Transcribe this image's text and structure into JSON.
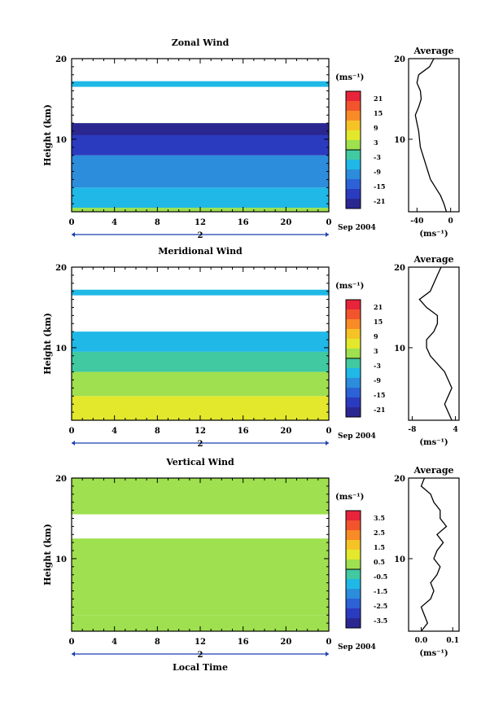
{
  "chart_data": [
    {
      "type": "heatmap",
      "title": "Zonal Wind",
      "ylabel": "Height (km)",
      "xlabel": "",
      "xlim": [
        0,
        24
      ],
      "ylim": [
        1,
        20
      ],
      "x_ticks": [
        "0",
        "4",
        "8",
        "12",
        "16",
        "20",
        "0"
      ],
      "y_ticks": [
        "10",
        "20"
      ],
      "date_label": "2",
      "date_suffix": "Sep 2004",
      "colorbar": {
        "unit": "(ms⁻¹)",
        "ticks": [
          "21",
          "15",
          "9",
          "3",
          "-3",
          "-9",
          "-15",
          "-21"
        ],
        "colors": [
          "#e8243a",
          "#f2552d",
          "#f98b27",
          "#f6c327",
          "#e3e82d",
          "#9ee04f",
          "#41c9a1",
          "#20b8e6",
          "#2b8ddc",
          "#2c62d6",
          "#2b3bc0",
          "#2a2890"
        ]
      },
      "field": {
        "bands": [
          {
            "y_from": 1.0,
            "y_to": 1.5,
            "value": 1
          },
          {
            "y_from": 1.5,
            "y_to": 4.0,
            "value": -5
          },
          {
            "y_from": 4.0,
            "y_to": 8.0,
            "value": -9
          },
          {
            "y_from": 8.0,
            "y_to": 10.5,
            "value": -14
          },
          {
            "y_from": 10.5,
            "y_to": 12.0,
            "value": -19
          },
          {
            "y_from": 16.5,
            "y_to": 17.2,
            "value": -6
          }
        ]
      },
      "profile": {
        "title": "Average",
        "xlabel": "(ms⁻¹)",
        "x_ticks": [
          "-40",
          "0"
        ],
        "xlim": [
          -50,
          10
        ],
        "y": [
          1,
          2,
          3,
          4,
          5,
          6,
          7,
          8,
          9,
          10,
          11,
          12,
          13,
          14,
          15,
          16,
          17,
          18,
          19,
          20
        ],
        "x": [
          -5,
          -8,
          -12,
          -18,
          -24,
          -27,
          -30,
          -33,
          -36,
          -37,
          -38,
          -40,
          -42,
          -38,
          -35,
          -36,
          -40,
          -38,
          -25,
          -20
        ]
      }
    },
    {
      "type": "heatmap",
      "title": "Meridional Wind",
      "ylabel": "Height (km)",
      "xlabel": "",
      "xlim": [
        0,
        24
      ],
      "ylim": [
        1,
        20
      ],
      "x_ticks": [
        "0",
        "4",
        "8",
        "12",
        "16",
        "20",
        "0"
      ],
      "y_ticks": [
        "10",
        "20"
      ],
      "date_label": "2",
      "date_suffix": "Sep 2004",
      "colorbar": {
        "unit": "(ms⁻¹)",
        "ticks": [
          "21",
          "15",
          "9",
          "3",
          "-3",
          "-9",
          "-15",
          "-21"
        ],
        "colors": [
          "#e8243a",
          "#f2552d",
          "#f98b27",
          "#f6c327",
          "#e3e82d",
          "#9ee04f",
          "#41c9a1",
          "#20b8e6",
          "#2b8ddc",
          "#2c62d6",
          "#2b3bc0",
          "#2a2890"
        ]
      },
      "field": {
        "bands": [
          {
            "y_from": 1.0,
            "y_to": 4.0,
            "value": 4
          },
          {
            "y_from": 4.0,
            "y_to": 7.0,
            "value": 2
          },
          {
            "y_from": 7.0,
            "y_to": 9.5,
            "value": -1
          },
          {
            "y_from": 9.5,
            "y_to": 12.0,
            "value": -5
          },
          {
            "y_from": 16.5,
            "y_to": 17.2,
            "value": -6
          }
        ]
      },
      "profile": {
        "title": "Average",
        "xlabel": "(ms⁻¹)",
        "x_ticks": [
          "-8",
          "4"
        ],
        "xlim": [
          -9,
          5
        ],
        "y": [
          1,
          2,
          3,
          4,
          5,
          6,
          7,
          8,
          9,
          10,
          11,
          12,
          13,
          14,
          15,
          16,
          17,
          18,
          19,
          20
        ],
        "x": [
          3,
          2,
          1,
          2,
          3,
          2,
          1,
          -1,
          -3,
          -4,
          -4,
          -2,
          -1,
          -1,
          -4,
          -6,
          -3,
          -2,
          -1,
          0
        ]
      }
    },
    {
      "type": "heatmap",
      "title": "Vertical Wind",
      "ylabel": "Height (km)",
      "xlabel": "Local Time",
      "xlim": [
        0,
        24
      ],
      "ylim": [
        1,
        20
      ],
      "x_ticks": [
        "0",
        "4",
        "8",
        "12",
        "16",
        "20",
        "0"
      ],
      "y_ticks": [
        "10",
        "20"
      ],
      "date_label": "2",
      "date_suffix": "Sep 2004",
      "colorbar": {
        "unit": "(ms⁻¹)",
        "ticks": [
          "3.5",
          "2.5",
          "1.5",
          "0.5",
          "-0.5",
          "-1.5",
          "-2.5",
          "-3.5"
        ],
        "colors": [
          "#e8243a",
          "#f2552d",
          "#f98b27",
          "#f6c327",
          "#e3e82d",
          "#9ee04f",
          "#41c9a1",
          "#20b8e6",
          "#2b8ddc",
          "#2c62d6",
          "#2b3bc0",
          "#2a2890"
        ]
      },
      "field": {
        "bands": [
          {
            "y_from": 1.0,
            "y_to": 3.0,
            "value": 0.2
          },
          {
            "y_from": 3.0,
            "y_to": 12.5,
            "value": 0.1
          },
          {
            "y_from": 15.5,
            "y_to": 20.0,
            "value": 0.2
          }
        ]
      },
      "profile": {
        "title": "Average",
        "xlabel": "(ms⁻¹)",
        "x_ticks": [
          "0.0",
          "0.1"
        ],
        "xlim": [
          -0.04,
          0.12
        ],
        "y": [
          1,
          2,
          3,
          4,
          5,
          6,
          7,
          8,
          9,
          10,
          11,
          12,
          13,
          14,
          15,
          16,
          17,
          18,
          19,
          20
        ],
        "x": [
          0.0,
          0.02,
          0.01,
          0.0,
          0.03,
          0.04,
          0.03,
          0.05,
          0.06,
          0.04,
          0.05,
          0.07,
          0.05,
          0.08,
          0.06,
          0.06,
          0.04,
          0.03,
          0.0,
          0.01
        ]
      }
    }
  ]
}
